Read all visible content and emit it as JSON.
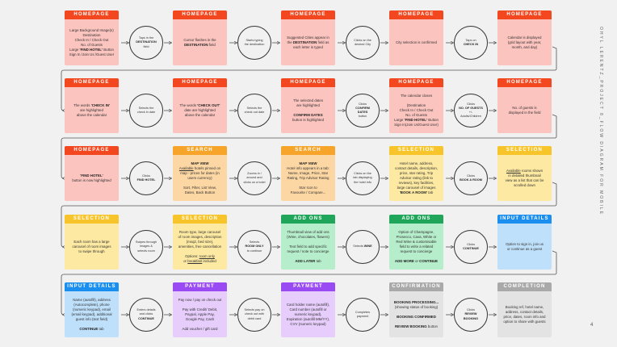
{
  "side_title": "OHYL LERENTZ_PROJECT 8_FLOW DIAGRAM FOR MOBILE",
  "page_number": "4",
  "colors": {
    "HOMEPAGE": {
      "header": "#f2471f",
      "body": "#fcc4bf"
    },
    "SEARCH": {
      "header": "#f6a52a",
      "body": "#fdd7a3"
    },
    "SELECTION": {
      "header": "#f7c52a",
      "body": "#fde9a1"
    },
    "ADD ONS": {
      "header": "#1fa65b",
      "body": "#b6edca"
    },
    "INPUT DETAILS": {
      "header": "#1b8ff0",
      "body": "#bfe0fb"
    },
    "PAYMENT": {
      "header": "#9a4af2",
      "body": "#e6cdfb"
    },
    "CONFIRMATION": {
      "header": "#a9a9a9",
      "body": "#e3e3e3"
    },
    "COMPLETION": {
      "header": "#a9a9a9",
      "body": "#e3e3e3"
    },
    "line": "#555555",
    "background": "#f1f1f1"
  },
  "rows": [
    {
      "cards": [
        {
          "title": "HOMEPAGE",
          "lines": [
            "Large Background Image(s)",
            "Destination",
            "Check In / Check Out",
            "No. of Guests",
            [
              "Large ",
              {
                "b": "'FIND HOTEL'"
              },
              " Button"
            ],
            "Sign In /Join Us /Guest User"
          ]
        },
        {
          "title": "HOMEPAGE",
          "lines": [
            "Cursor flashes in the",
            [
              {
                "b": "DESTINATION"
              },
              " field"
            ]
          ]
        },
        {
          "title": "HOMEPAGE",
          "lines": [
            "Suggested Cities appear in",
            [
              "the ",
              {
                "b": "DESTINATION"
              },
              " field as"
            ],
            "each letter is typed"
          ]
        },
        {
          "title": "HOMEPAGE",
          "lines": [
            "City selection is confirmed"
          ]
        },
        {
          "title": "HOMEPAGE",
          "lines": [
            "Calendar is displayed",
            "(grid layout with year,",
            "month, and day)"
          ]
        }
      ],
      "actions": [
        {
          "lines": [
            "Taps in the",
            [
              {
                "b": "DESTINATION"
              }
            ],
            "field"
          ]
        },
        {
          "lines": [
            "Starts typing",
            "the destination"
          ]
        },
        {
          "lines": [
            "Clicks on the",
            "desired City"
          ]
        },
        {
          "lines": [
            "Taps on",
            [
              {
                "b": "CHECK IN"
              }
            ]
          ]
        }
      ]
    },
    {
      "cards": [
        {
          "title": "HOMEPAGE",
          "lines": [
            [
              "The words ",
              {
                "b": "'CHECK IN'"
              }
            ],
            "are highlighted",
            "above the calendar"
          ]
        },
        {
          "title": "HOMEPAGE",
          "lines": [
            [
              "The words ",
              {
                "b": "'CHECK OUT'"
              }
            ],
            "date are highlighted",
            "above the calendar"
          ]
        },
        {
          "title": "HOMEPAGE",
          "lines": [
            "The selected dates",
            "are highlighted",
            "",
            [
              {
                "b": "CONFIRM DATES"
              }
            ],
            "button is highlighted"
          ]
        },
        {
          "title": "HOMEPAGE",
          "lines": [
            "The calendar closes",
            "",
            "(Destination",
            "Check In / Check Out",
            "No. of Guests",
            [
              "Large ",
              {
                "b": "'FIND HOTEL'"
              },
              " Button"
            ],
            "Sign In(Join Us/Guest User)"
          ]
        },
        {
          "title": "HOMEPAGE",
          "lines": [
            "No. of guests is",
            "displayed in the field"
          ]
        }
      ],
      "actions": [
        {
          "lines": [
            "Selects the",
            "check in date"
          ]
        },
        {
          "lines": [
            "Selects the",
            "check out date"
          ]
        },
        {
          "lines": [
            "Clicks",
            [
              {
                "b": "CONFIRM"
              }
            ],
            [
              {
                "b": "DATES"
              }
            ],
            "button"
          ]
        },
        {
          "lines": [
            "Clicks",
            [
              {
                "b": "NO. OF GUESTS"
              }
            ],
            "+/-",
            "Adults/Children"
          ]
        }
      ]
    },
    {
      "cards": [
        {
          "title": "HOMEPAGE",
          "lines": [
            [
              {
                "b": "'FIND HOTEL'"
              }
            ],
            "button is now highlighted"
          ]
        },
        {
          "title": "SEARCH",
          "lines": [
            [
              {
                "b": "MAP VIEW"
              }
            ],
            [
              {
                "u": "Available"
              },
              " hotels pinned on"
            ],
            "map - prices for dates (in",
            "users currency)",
            "",
            "Sort, Filter, List View,",
            "Dates, Back Button"
          ]
        },
        {
          "title": "SEARCH",
          "lines": [
            [
              {
                "b": "MAP VIEW"
              }
            ],
            "Hotel info appears in a tab:",
            "Name, Image, Price, Star",
            "Rating, Trip Advisor Rating",
            "",
            "Star Icon to",
            "Favourite / Compare..."
          ]
        },
        {
          "title": "SELECTION",
          "lines": [
            "Hotel name, address,",
            "contact details, description,",
            "price, star rating, Trip",
            "Advisor rating (link to",
            "reviews), key facilities,",
            "large carousel of images",
            [
              {
                "b": "'BOOK A ROOM'"
              },
              " tab"
            ]
          ]
        },
        {
          "title": "SELECTION",
          "lines": [
            [
              {
                "u": "Available"
              },
              " rooms shown"
            ],
            "in detailed thumbnail",
            "view as a list that can be",
            "scrolled down"
          ]
        }
      ],
      "actions": [
        {
          "lines": [
            "Clicks",
            [
              {
                "b": "FIND HOTEL"
              }
            ]
          ]
        },
        {
          "lines": [
            "Zooms in /",
            "around and",
            "clicks on a hotel"
          ]
        },
        {
          "lines": [
            "Clicks on the",
            "tab displaying",
            "the hotel info"
          ]
        },
        {
          "lines": [
            "Clicks",
            [
              {
                "b": "BOOK A ROOM"
              }
            ]
          ]
        }
      ]
    },
    {
      "cards": [
        {
          "title": "SELECTION",
          "lines": [
            "Each room has a large",
            "carousel of room images",
            "to swipe through"
          ]
        },
        {
          "title": "SELECTION",
          "lines": [
            "Room type, large carousel",
            "of room images, description",
            "(msq2, bed size),",
            "amenities, free cancellation",
            "",
            [
              "Options: ",
              {
                "u": "room only"
              }
            ],
            [
              "or ",
              {
                "u": "breakfast"
              },
              " included"
            ]
          ]
        },
        {
          "title": "ADD ONS",
          "lines": [
            "Thumbnail view of add ons",
            "(Wine, chocolates, flowers)",
            "",
            "Text field to add specific",
            "request / note to concierge",
            "",
            [
              {
                "b": "ADD LATER"
              },
              " tab"
            ]
          ]
        },
        {
          "title": "ADD ONS",
          "lines": [
            "Option of Champagne,",
            "Prosecco, Cava, White or",
            "Red Wine & customisable",
            "field to write a related",
            "request to concierge",
            "",
            [
              {
                "b": "ADD MORE"
              },
              " or ",
              {
                "b": "CONTINUE"
              }
            ]
          ]
        },
        {
          "title": "INPUT DETAILS",
          "lines": [
            "Option to sign in, join us",
            "or continue as a guest"
          ]
        }
      ],
      "actions": [
        {
          "lines": [
            "Swipes through",
            "images &",
            "selects room"
          ]
        },
        {
          "lines": [
            "Selects",
            [
              {
                "b": "ROOM ONLY"
              }
            ],
            "to continue"
          ]
        },
        {
          "lines": [
            [
              "Selects ",
              {
                "b": "WINE"
              }
            ]
          ]
        },
        {
          "lines": [
            "Clicks",
            [
              {
                "b": "CONTINUE"
              }
            ]
          ]
        }
      ]
    },
    {
      "cards": [
        {
          "title": "INPUT DETAILS",
          "lines": [
            "Name (autofill), address",
            "(Autocomplete), phone",
            "(numeric keypad), email",
            "(email keypad), additional",
            "guest info (text field)",
            "",
            [
              {
                "b": "CONTINUE"
              },
              " tab"
            ]
          ]
        },
        {
          "title": "PAYMENT",
          "lines": [
            "Pay now / pay on check out",
            "",
            "Pay with Credit/ Debit,",
            "Paypal, Apple Pay,",
            "Google Pay, Cash",
            "",
            "Add voucher / gift card"
          ]
        },
        {
          "title": "PAYMENT",
          "lines": [
            "Card holder name (autofill),",
            "Card number (autofill or",
            "numeric keypad),",
            "Expiration (autofill MM/YY),",
            "CVV (numeric keypad)"
          ]
        },
        {
          "title": "CONFIRMATION",
          "lines": [
            [
              {
                "b": "BOOKING PROCESSING..."
              }
            ],
            "(showing status of booking)",
            "",
            [
              {
                "b": "BOOKING CONFIRMED"
              }
            ],
            "",
            [
              {
                "b": "REVIEW BOOKING"
              },
              " button"
            ]
          ]
        },
        {
          "title": "COMPLETION",
          "lines": [
            "Booking ref, hotel name,",
            "address, contact details,",
            "price, dates, room info and",
            "option to share with guests"
          ]
        }
      ],
      "actions": [
        {
          "lines": [
            "Enters details",
            "and clicks",
            [
              {
                "b": "CONTINUE"
              }
            ]
          ]
        },
        {
          "lines": [
            "Selects pay on",
            "check out with",
            "debit card"
          ]
        },
        {
          "lines": [
            "Completes",
            "payment"
          ]
        },
        {
          "lines": [
            "Clicks",
            [
              {
                "b": "REVIEW"
              }
            ],
            [
              {
                "b": "BOOKING"
              }
            ]
          ]
        }
      ]
    }
  ]
}
